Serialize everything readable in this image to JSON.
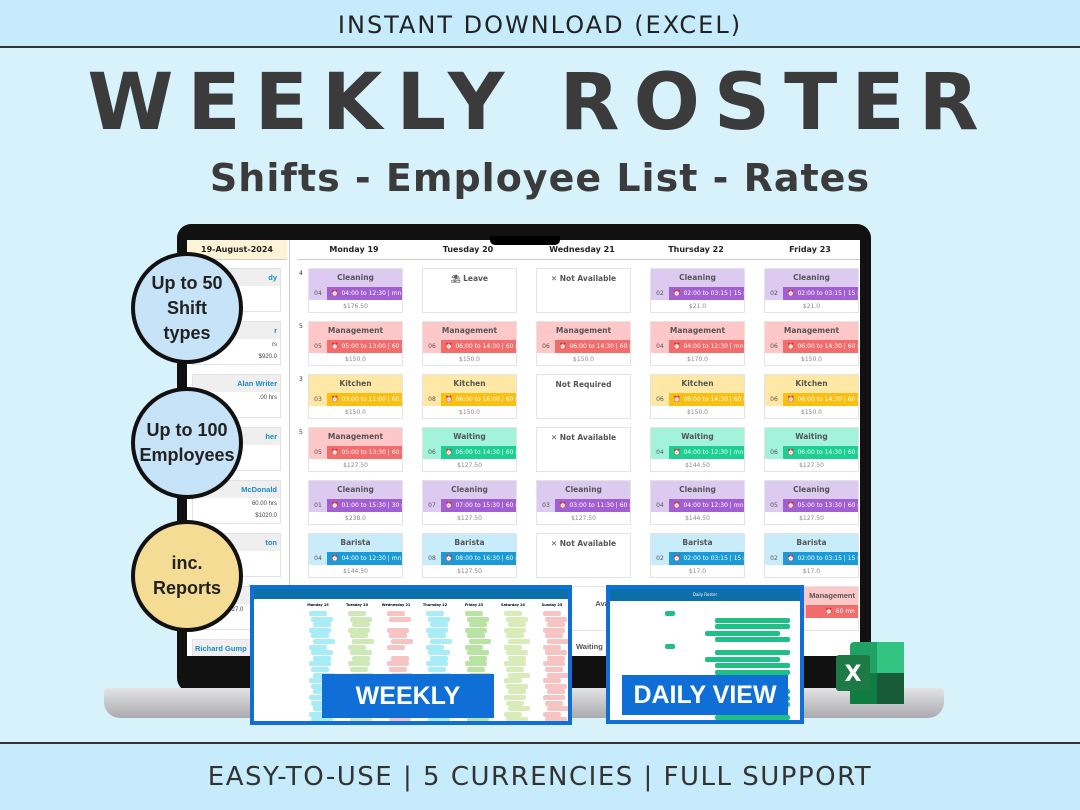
{
  "header": {
    "top": "INSTANT DOWNLOAD (EXCEL)",
    "title": "WEEKLY ROSTER",
    "subtitle": "Shifts - Employee List - Rates"
  },
  "footer": "EASY-TO-USE  |  5 CURRENCIES |  FULL SUPPORT",
  "badges": [
    {
      "text": "Up to 50 Shift types",
      "color": "#c6e3f7"
    },
    {
      "text": "Up to 100 Employees",
      "color": "#c6e3f7"
    },
    {
      "text": "inc. Reports",
      "color": "#f5dc95"
    }
  ],
  "roster": {
    "date": "19-August-2024",
    "days": [
      "Monday 19",
      "Tuesday 20",
      "Wednesday 21",
      "Thursday 22",
      "Friday 23"
    ],
    "employees": [
      {
        "name": "dy",
        "hours": "",
        "cost": ""
      },
      {
        "name": "r",
        "hours": "rs",
        "cost": "$920.0"
      },
      {
        "name": "Alan Writer",
        "hours": ".00 hrs",
        "cost": ""
      },
      {
        "name": "her",
        "hours": "",
        "cost": ""
      },
      {
        "name": "McDonald",
        "hours": "60.00 hrs",
        "cost": "$1020.0"
      },
      {
        "name": "ton",
        "hours": "",
        "cost": ""
      },
      {
        "name": "",
        "hours": "",
        "cost": "$527.0"
      },
      {
        "name": "Richard Gump",
        "hours": "",
        "cost": ""
      }
    ],
    "row_counts": [
      "4",
      "5",
      "3",
      "5",
      "",
      "",
      "",
      ""
    ],
    "shift_colors": {
      "Cleaning": [
        "#dccaf0",
        "#a25fd2"
      ],
      "Management": [
        "#ffc8c8",
        "#f36c6c"
      ],
      "Kitchen": [
        "#ffe8a6",
        "#fbbf12"
      ],
      "Waiting": [
        "#a2f3d9",
        "#1ccf92"
      ],
      "Barista": [
        "#c9ecfa",
        "#1a9ad6"
      ]
    },
    "rows": [
      [
        {
          "shift": "Cleaning",
          "num": "04",
          "time": "04:00 to 12:30 | mn",
          "cost": "$176.50"
        },
        {
          "status": "⛱ Leave"
        },
        {
          "status": "✕ Not Available"
        },
        {
          "shift": "Cleaning",
          "num": "02",
          "time": "02:00 to 03:15 | 15 mn",
          "cost": "$21.0"
        },
        {
          "shift": "Cleaning",
          "num": "02",
          "time": "02:00 to 03:15 | 15 mn",
          "cost": "$21.0"
        }
      ],
      [
        {
          "shift": "Management",
          "num": "05",
          "time": "05:00 to 13:00 | 60 mn",
          "cost": "$150.0"
        },
        {
          "shift": "Management",
          "num": "06",
          "time": "06:00 to 14:30 | 60 mn",
          "cost": "$150.0"
        },
        {
          "shift": "Management",
          "num": "06",
          "time": "06:00 to 14:30 | 60 mn",
          "cost": "$150.0"
        },
        {
          "shift": "Management",
          "num": "04",
          "time": "04:00 to 12:30 | mn",
          "cost": "$170.0"
        },
        {
          "shift": "Management",
          "num": "06",
          "time": "06:00 to 14:30 | 60 mn",
          "cost": "$150.0"
        }
      ],
      [
        {
          "shift": "Kitchen",
          "num": "03",
          "time": "03:00 to 11:00 | 60 mn",
          "cost": "$150.0"
        },
        {
          "shift": "Kitchen",
          "num": "08",
          "time": "08:00 to 16:00 | 60 mn",
          "cost": "$150.0"
        },
        {
          "status": "Not Required"
        },
        {
          "shift": "Kitchen",
          "num": "06",
          "time": "06:00 to 14:30 | 60 mn",
          "cost": "$150.0"
        },
        {
          "shift": "Kitchen",
          "num": "06",
          "time": "06:00 to 14:30 | 60 mn",
          "cost": "$150.0"
        }
      ],
      [
        {
          "shift": "Management",
          "num": "05",
          "time": "05:00 to 13:30 | 60 mn",
          "cost": "$127.50"
        },
        {
          "shift": "Waiting",
          "num": "06",
          "time": "06:00 to 14:30 | 60 mn",
          "cost": "$127.50"
        },
        {
          "status": "✕ Not Available"
        },
        {
          "shift": "Waiting",
          "num": "04",
          "time": "04:00 to 12:30 | mn",
          "cost": "$144.50"
        },
        {
          "shift": "Waiting",
          "num": "06",
          "time": "06:00 to 14:30 | 60 mn",
          "cost": "$127.50"
        }
      ],
      [
        {
          "shift": "Cleaning",
          "num": "01",
          "time": "01:00 to 15:30 | 30 mn",
          "cost": "$238.0"
        },
        {
          "shift": "Cleaning",
          "num": "07",
          "time": "07:00 to 15:30 | 60 mn",
          "cost": "$127.50"
        },
        {
          "shift": "Cleaning",
          "num": "03",
          "time": "03:00 to 11:30 | 60 mn",
          "cost": "$127.50"
        },
        {
          "shift": "Cleaning",
          "num": "04",
          "time": "04:00 to 12:30 | mn",
          "cost": "$144.50"
        },
        {
          "shift": "Cleaning",
          "num": "05",
          "time": "05:00 to 13:30 | 60 mn",
          "cost": "$127.50"
        }
      ],
      [
        {
          "shift": "Barista",
          "num": "04",
          "time": "04:00 to 12:30 | mn",
          "cost": "$144.50"
        },
        {
          "shift": "Barista",
          "num": "08",
          "time": "08:00 to 16:30 | 60 mn",
          "cost": "$127.50"
        },
        {
          "status": "✕ Not Available"
        },
        {
          "shift": "Barista",
          "num": "02",
          "time": "02:00 to 03:15 | 15 mn",
          "cost": "$17.0"
        },
        {
          "shift": "Barista",
          "num": "02",
          "time": "02:00 to 03:15 | 15 mn",
          "cost": "$17.0"
        }
      ],
      [
        null,
        null,
        {
          "status": "✕ Not Available"
        },
        {
          "shift": "Waiting",
          "num": "",
          "time": "",
          "cost": ""
        },
        {
          "shift": "Management",
          "num": "",
          "time": "60 mn",
          "cost": ""
        }
      ]
    ]
  },
  "weekly_view": {
    "label": "WEEKLY VIEW",
    "days": [
      "Monday 19",
      "Tuesday 20",
      "Wednesday 21",
      "Thursday 22",
      "Friday 23",
      "Saturday 24",
      "Sunday 25"
    ]
  },
  "daily_view": {
    "label": "DAILY VIEW",
    "title": "Daily Roster"
  },
  "excel_icon": {
    "letter": "X",
    "color": "#1d7a45"
  }
}
